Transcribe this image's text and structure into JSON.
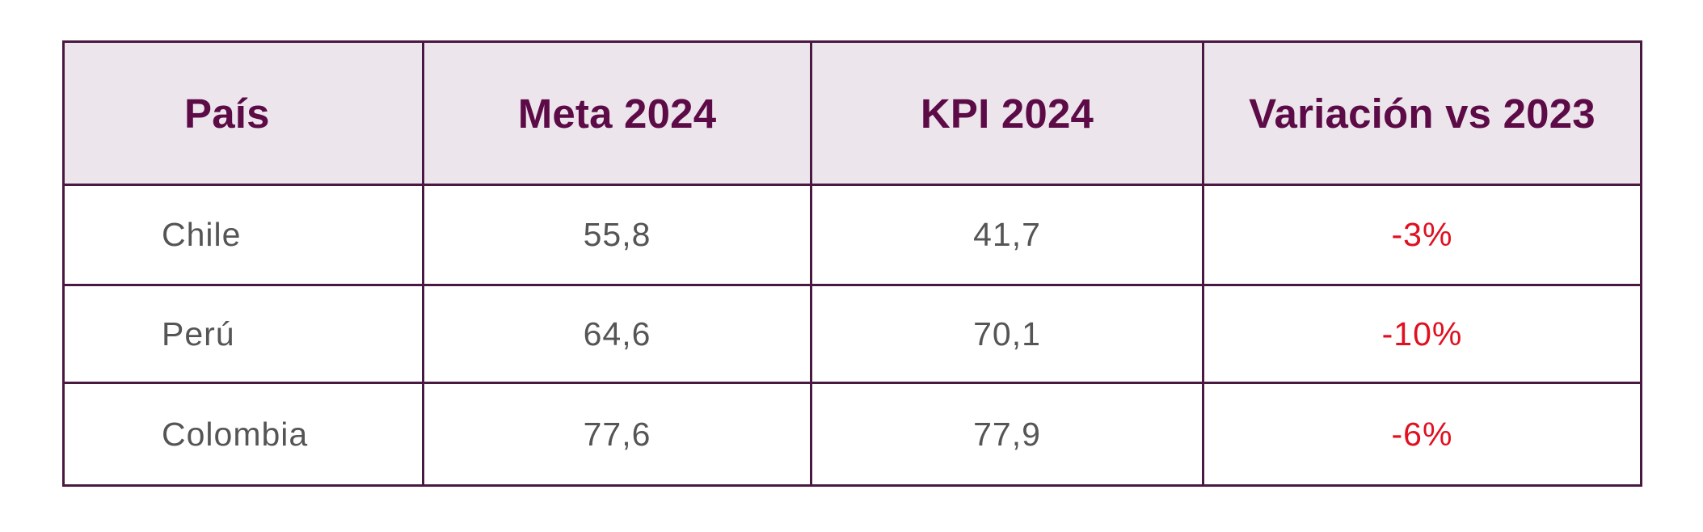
{
  "table": {
    "headers": [
      "País",
      "Meta 2024",
      "KPI 2024",
      "Variación vs 2023"
    ],
    "rows": [
      {
        "country": "Chile",
        "meta": "55,8",
        "kpi": "41,7",
        "variation": "-3%"
      },
      {
        "country": "Perú",
        "meta": "64,6",
        "kpi": "70,1",
        "variation": "-10%"
      },
      {
        "country": "Colombia",
        "meta": "77,6",
        "kpi": "77,9",
        "variation": "-6%"
      }
    ]
  },
  "colors": {
    "border": "#4a1942",
    "header_background": "#ede5ec",
    "header_text": "#5c0b47",
    "body_text": "#555555",
    "negative_variation": "#e01020"
  }
}
